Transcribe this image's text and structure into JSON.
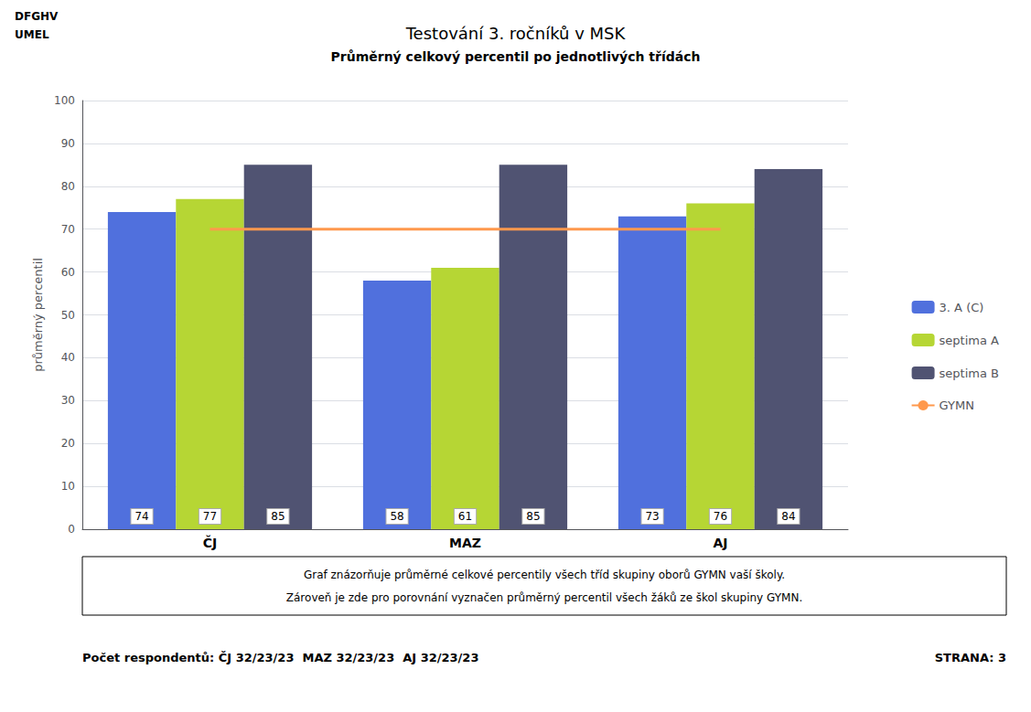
{
  "chart_data": {
    "type": "bar",
    "title": "Testování 3. ročníků v MSK",
    "subtitle": "Průměrný celkový percentil po jednotlivých třídách",
    "y_label": "průměrný percentil",
    "categories": [
      "ČJ",
      "MAZ",
      "AJ"
    ],
    "series": [
      {
        "name": "3. A (C)",
        "values": [
          74,
          58,
          73
        ]
      },
      {
        "name": "septima A",
        "values": [
          77,
          61,
          76
        ]
      },
      {
        "name": "septima B",
        "values": [
          85,
          85,
          84
        ]
      },
      {
        "name": "GYMN",
        "type": "line",
        "values": [
          70,
          70,
          70
        ]
      }
    ],
    "ylim": [
      0,
      100
    ],
    "yticks": [
      0,
      10,
      20,
      30,
      40,
      50,
      60,
      70,
      80,
      90,
      100
    ],
    "grid": true,
    "legend": "right",
    "data_labels": true,
    "annotations": [
      "DFGHV",
      "UMEL",
      "Graf znázorňuje průměrné celkové percentily všech tříd skupiny oborů GYMN vaší školy.",
      "Zároveň je zde pro porovnání vyznačen průměrný percentil všech žáků ze škol skupiny GYMN.",
      "Počet respondentů: ČJ 32/23/23  MAZ 32/23/23  AJ 32/23/23",
      "STRANA: 3"
    ]
  }
}
